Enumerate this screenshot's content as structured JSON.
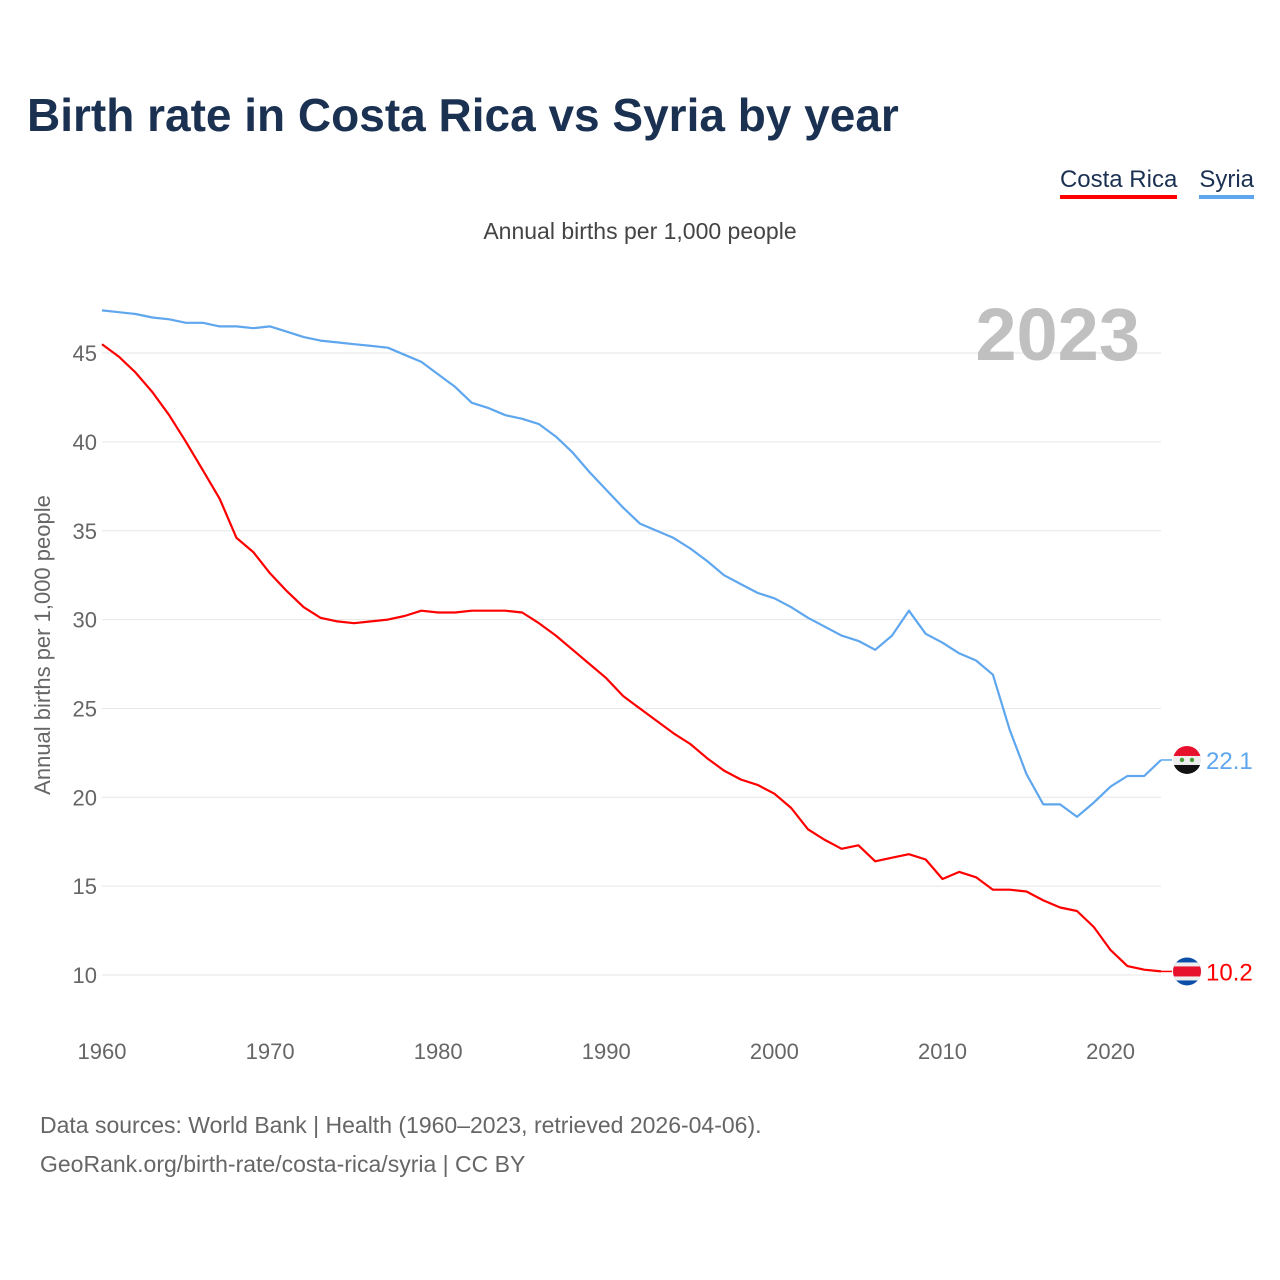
{
  "title": "Birth rate in Costa Rica vs Syria by year",
  "subtitle": "Annual births per 1,000 people",
  "footer": {
    "line1": "Data sources: World Bank | Health (1960–2023, retrieved 2026-04-06).",
    "line2": "GeoRank.org/birth-rate/costa-rica/syria | CC BY"
  },
  "chart_data": {
    "type": "line",
    "title": "Birth rate in Costa Rica vs Syria by year",
    "xlabel": "",
    "ylabel": "Annual births per 1,000 people",
    "year_label": "2023",
    "xlim": [
      1960,
      2023
    ],
    "ylim": [
      8,
      48
    ],
    "x_ticks": [
      1960,
      1970,
      1980,
      1990,
      2000,
      2010,
      2020
    ],
    "y_ticks": [
      10,
      15,
      20,
      25,
      30,
      35,
      40,
      45
    ],
    "grid": true,
    "legend_position": "top-right",
    "x_start": 1960,
    "series": [
      {
        "name": "Costa Rica",
        "color": "#ff0000",
        "end_label": "10.2",
        "values": [
          45.5,
          44.8,
          43.9,
          42.8,
          41.5,
          40.0,
          38.4,
          36.8,
          34.6,
          33.8,
          32.6,
          31.6,
          30.7,
          30.1,
          29.9,
          29.8,
          29.9,
          30.0,
          30.2,
          30.5,
          30.4,
          30.4,
          30.5,
          30.5,
          30.5,
          30.4,
          29.8,
          29.1,
          28.3,
          27.5,
          26.7,
          25.7,
          25.0,
          24.3,
          23.6,
          23.0,
          22.2,
          21.5,
          21.0,
          20.7,
          20.2,
          19.4,
          18.2,
          17.6,
          17.1,
          17.3,
          16.4,
          16.6,
          16.8,
          16.5,
          15.4,
          15.8,
          15.5,
          14.8,
          14.8,
          14.7,
          14.2,
          13.8,
          13.6,
          12.7,
          11.4,
          10.5,
          10.3,
          10.2
        ]
      },
      {
        "name": "Syria",
        "color": "#5ea6ee",
        "end_label": "22.1",
        "values": [
          47.4,
          47.3,
          47.2,
          47.0,
          46.9,
          46.7,
          46.7,
          46.5,
          46.5,
          46.4,
          46.5,
          46.2,
          45.9,
          45.7,
          45.6,
          45.5,
          45.4,
          45.3,
          44.9,
          44.5,
          43.8,
          43.1,
          42.2,
          41.9,
          41.5,
          41.3,
          41.0,
          40.3,
          39.4,
          38.3,
          37.3,
          36.3,
          35.4,
          35.0,
          34.6,
          34.0,
          33.3,
          32.5,
          32.0,
          31.5,
          31.2,
          30.7,
          30.1,
          29.6,
          29.1,
          28.8,
          28.3,
          29.1,
          30.5,
          29.2,
          28.7,
          28.1,
          27.7,
          26.9,
          23.8,
          21.3,
          19.6,
          19.6,
          18.9,
          19.7,
          20.6,
          21.2,
          21.2,
          22.1
        ]
      }
    ]
  }
}
